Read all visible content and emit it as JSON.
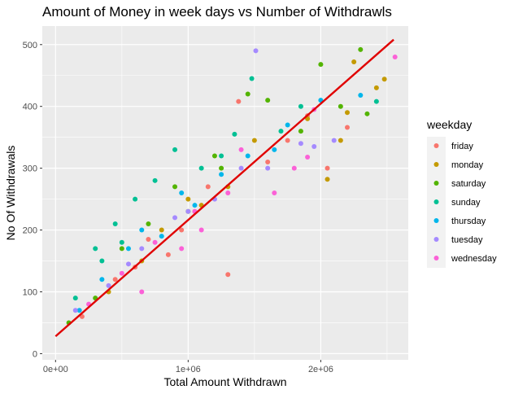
{
  "chart_data": {
    "type": "scatter",
    "title": "Amount of Money in week days vs Number of Withdrawls",
    "xlabel": "Total Amount Withdrawn",
    "ylabel": "No Of Withdrawals",
    "xlim": [
      -100000,
      2660000
    ],
    "ylim": [
      -10,
      530
    ],
    "x_ticks": [
      0,
      1000000,
      2000000
    ],
    "x_tick_labels": [
      "0e+00",
      "1e+06",
      "2e+06"
    ],
    "y_ticks": [
      0,
      100,
      200,
      300,
      400,
      500
    ],
    "y_tick_labels": [
      "0",
      "100",
      "200",
      "300",
      "400",
      "500"
    ],
    "grid": true,
    "legend": {
      "title": "weekday",
      "position": "right",
      "entries": [
        "friday",
        "monday",
        "saturday",
        "sunday",
        "thursday",
        "tuesday",
        "wednesday"
      ]
    },
    "colors": {
      "friday": "#F8766D",
      "monday": "#C49A00",
      "saturday": "#53B400",
      "sunday": "#00C094",
      "thursday": "#00B6EB",
      "tuesday": "#A58AFF",
      "wednesday": "#FB61D7",
      "trend_line": "#E00000",
      "panel_background": "#EBEBEB",
      "grid": "#FFFFFF"
    },
    "trend_line": {
      "x": [
        0,
        2550000
      ],
      "y": [
        28,
        508
      ]
    },
    "series": [
      {
        "name": "friday",
        "x": [
          1380000,
          2200000,
          1300000,
          1900000,
          2050000,
          1150000,
          950000,
          700000,
          450000,
          200000,
          1600000,
          1750000,
          850000,
          1050000,
          600000
        ],
        "y": [
          408,
          366,
          128,
          385,
          300,
          270,
          200,
          185,
          120,
          60,
          310,
          345,
          160,
          230,
          140
        ]
      },
      {
        "name": "monday",
        "x": [
          2480000,
          2250000,
          2200000,
          2420000,
          2050000,
          1500000,
          1000000,
          800000,
          1300000,
          650000,
          400000,
          1900000,
          2150000,
          1100000
        ],
        "y": [
          444,
          472,
          390,
          430,
          282,
          345,
          250,
          200,
          270,
          150,
          100,
          380,
          345,
          240
        ]
      },
      {
        "name": "saturday",
        "x": [
          2000000,
          2300000,
          2350000,
          2150000,
          1600000,
          1450000,
          1200000,
          900000,
          700000,
          500000,
          300000,
          100000,
          1850000,
          1250000,
          1000000
        ],
        "y": [
          468,
          492,
          388,
          400,
          410,
          420,
          320,
          270,
          210,
          170,
          90,
          50,
          360,
          300,
          230
        ]
      },
      {
        "name": "sunday",
        "x": [
          1480000,
          1850000,
          1700000,
          1350000,
          900000,
          750000,
          600000,
          450000,
          300000,
          150000,
          1100000,
          1250000,
          500000,
          350000,
          2420000
        ],
        "y": [
          445,
          400,
          360,
          355,
          330,
          280,
          250,
          210,
          170,
          90,
          300,
          320,
          180,
          150,
          408
        ]
      },
      {
        "name": "thursday",
        "x": [
          2300000,
          1650000,
          2000000,
          1250000,
          1050000,
          950000,
          800000,
          550000,
          350000,
          180000,
          1450000,
          1750000,
          650000
        ],
        "y": [
          418,
          330,
          410,
          290,
          240,
          260,
          190,
          170,
          120,
          70,
          320,
          370,
          200
        ]
      },
      {
        "name": "tuesday",
        "x": [
          1510000,
          1950000,
          2100000,
          1850000,
          1600000,
          1200000,
          900000,
          650000,
          400000,
          150000,
          1000000,
          1400000,
          550000
        ],
        "y": [
          490,
          335,
          345,
          340,
          300,
          250,
          220,
          170,
          110,
          70,
          230,
          300,
          145
        ]
      },
      {
        "name": "wednesday",
        "x": [
          2560000,
          1800000,
          1900000,
          1950000,
          1400000,
          1050000,
          750000,
          500000,
          250000,
          950000,
          1300000,
          1650000,
          650000,
          1100000
        ],
        "y": [
          480,
          300,
          318,
          395,
          330,
          230,
          180,
          130,
          80,
          170,
          260,
          260,
          100,
          200
        ]
      }
    ]
  }
}
